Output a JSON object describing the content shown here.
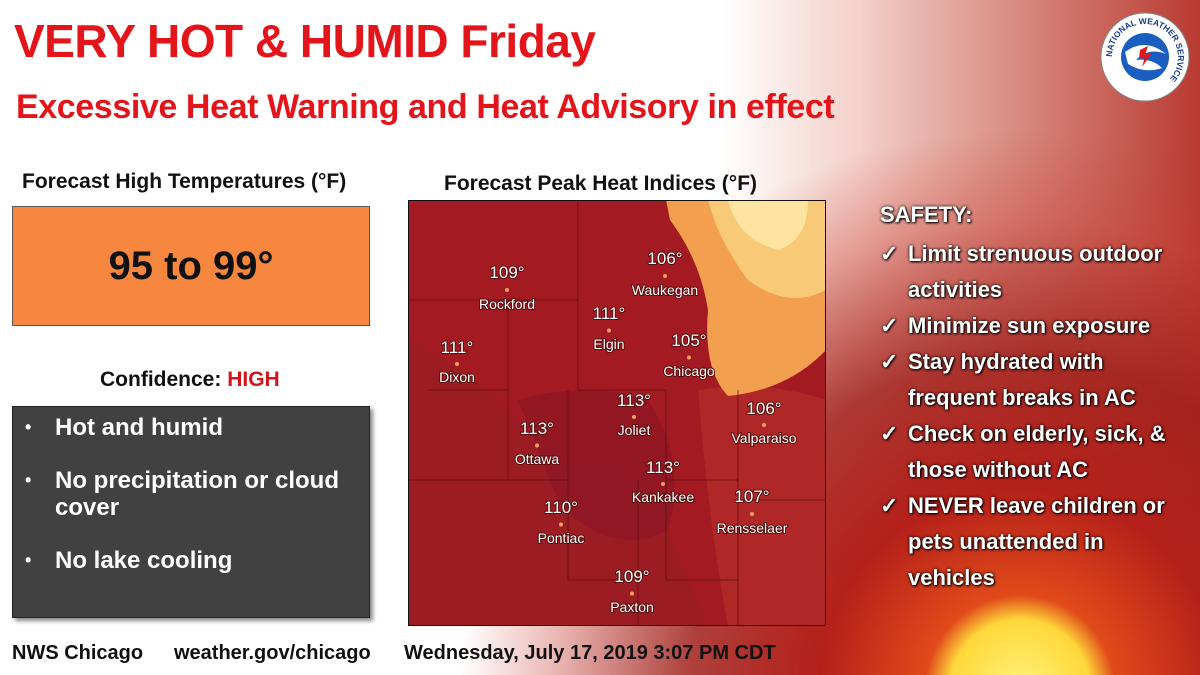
{
  "header": {
    "title": "VERY HOT & HUMID Friday",
    "subtitle": "Excessive Heat Warning and Heat Advisory in effect"
  },
  "logo": {
    "text": "NATIONAL WEATHER SERVICE"
  },
  "left": {
    "temp_heading": "Forecast High Temperatures (°F)",
    "temp_value": "95 to 99°",
    "confidence_label": "Confidence:",
    "confidence_value": "HIGH",
    "bullets": [
      "Hot and humid",
      "No precipitation or cloud cover",
      "No lake cooling"
    ]
  },
  "map": {
    "heading": "Forecast Peak Heat Indices (°F)",
    "cities": [
      {
        "value": "109°",
        "name": "Rockford"
      },
      {
        "value": "106°",
        "name": "Waukegan"
      },
      {
        "value": "111°",
        "name": "Elgin"
      },
      {
        "value": "111°",
        "name": "Dixon"
      },
      {
        "value": "105°",
        "name": "Chicago"
      },
      {
        "value": "113°",
        "name": "Joliet"
      },
      {
        "value": "106°",
        "name": "Valparaiso"
      },
      {
        "value": "113°",
        "name": "Ottawa"
      },
      {
        "value": "113°",
        "name": "Kankakee"
      },
      {
        "value": "107°",
        "name": "Rensselaer"
      },
      {
        "value": "110°",
        "name": "Pontiac"
      },
      {
        "value": "109°",
        "name": "Paxton"
      }
    ]
  },
  "safety": {
    "heading": "SAFETY:",
    "items": [
      "Limit strenuous outdoor activities",
      "Minimize sun exposure",
      "Stay hydrated with frequent breaks in AC",
      "Check on elderly, sick, & those without AC",
      "NEVER leave children or pets unattended in vehicles"
    ]
  },
  "footer": {
    "office": "NWS Chicago",
    "url": "weather.gov/chicago",
    "timestamp": "Wednesday, July 17, 2019 3:07 PM CDT"
  }
}
